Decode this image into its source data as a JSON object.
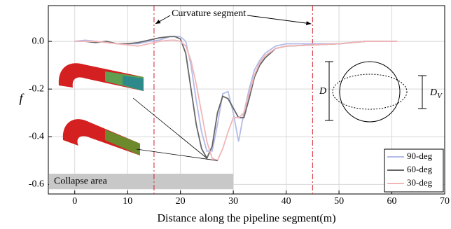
{
  "chart_data": {
    "type": "line",
    "x_label": "Distance along the pipeline segment(m)",
    "y_label": "f",
    "x": [
      0,
      2,
      4,
      6,
      8,
      10,
      12,
      14,
      16,
      18,
      19,
      20,
      21,
      22,
      23,
      24,
      25,
      26,
      27,
      28,
      29,
      30,
      31,
      32,
      33,
      34,
      35,
      36,
      38,
      40,
      45,
      50,
      55,
      61
    ],
    "series": [
      {
        "name": "90-deg",
        "color": "#b4bbe8",
        "values": [
          0,
          0.005,
          0,
          -0.005,
          -0.01,
          -0.01,
          -0.01,
          0,
          0.005,
          0.02,
          0.02,
          0.02,
          0,
          -0.1,
          -0.25,
          -0.38,
          -0.46,
          -0.46,
          -0.35,
          -0.22,
          -0.21,
          -0.3,
          -0.42,
          -0.3,
          -0.2,
          -0.12,
          -0.08,
          -0.05,
          -0.02,
          -0.01,
          -0.01,
          -0.01,
          0,
          0
        ]
      },
      {
        "name": "60-deg",
        "color": "#666666",
        "values": [
          0,
          0,
          -0.005,
          0,
          -0.01,
          -0.01,
          -0.005,
          0.005,
          0.015,
          0.02,
          0.02,
          0.01,
          -0.05,
          -0.2,
          -0.35,
          -0.45,
          -0.49,
          -0.44,
          -0.3,
          -0.23,
          -0.24,
          -0.28,
          -0.32,
          -0.32,
          -0.24,
          -0.15,
          -0.1,
          -0.07,
          -0.03,
          -0.02,
          -0.015,
          -0.01,
          0,
          0
        ]
      },
      {
        "name": "30-deg",
        "color": "#f2b6b8",
        "values": [
          0,
          0,
          0,
          -0.005,
          -0.01,
          -0.015,
          -0.02,
          -0.01,
          0,
          0.005,
          0.005,
          0,
          -0.02,
          -0.08,
          -0.18,
          -0.3,
          -0.42,
          -0.49,
          -0.5,
          -0.45,
          -0.38,
          -0.32,
          -0.32,
          -0.3,
          -0.22,
          -0.14,
          -0.09,
          -0.06,
          -0.03,
          -0.02,
          -0.015,
          -0.01,
          0,
          0
        ]
      }
    ],
    "xlim": [
      -5,
      70
    ],
    "xticks": [
      0,
      10,
      20,
      30,
      40,
      50,
      60,
      70
    ],
    "ylim": [
      -0.64,
      0.15
    ],
    "yticks": [
      {
        "value": -0.6,
        "label": "-0.6"
      },
      {
        "value": -0.4,
        "label": "-0.4"
      },
      {
        "value": -0.2,
        "label": "-0.2"
      },
      {
        "value": 0,
        "label": "0.0"
      }
    ],
    "grid": true,
    "legend": "lower right",
    "vlines": {
      "x": [
        15,
        45
      ],
      "color": "#d0202a",
      "label": "Curvature segment"
    },
    "collapse_area": {
      "label": "Collapse area",
      "x": [
        -5,
        30
      ],
      "y": [
        -0.62,
        -0.555
      ]
    },
    "diagram": {
      "d": "D",
      "dv": "D",
      "dv_sub": "V"
    }
  }
}
